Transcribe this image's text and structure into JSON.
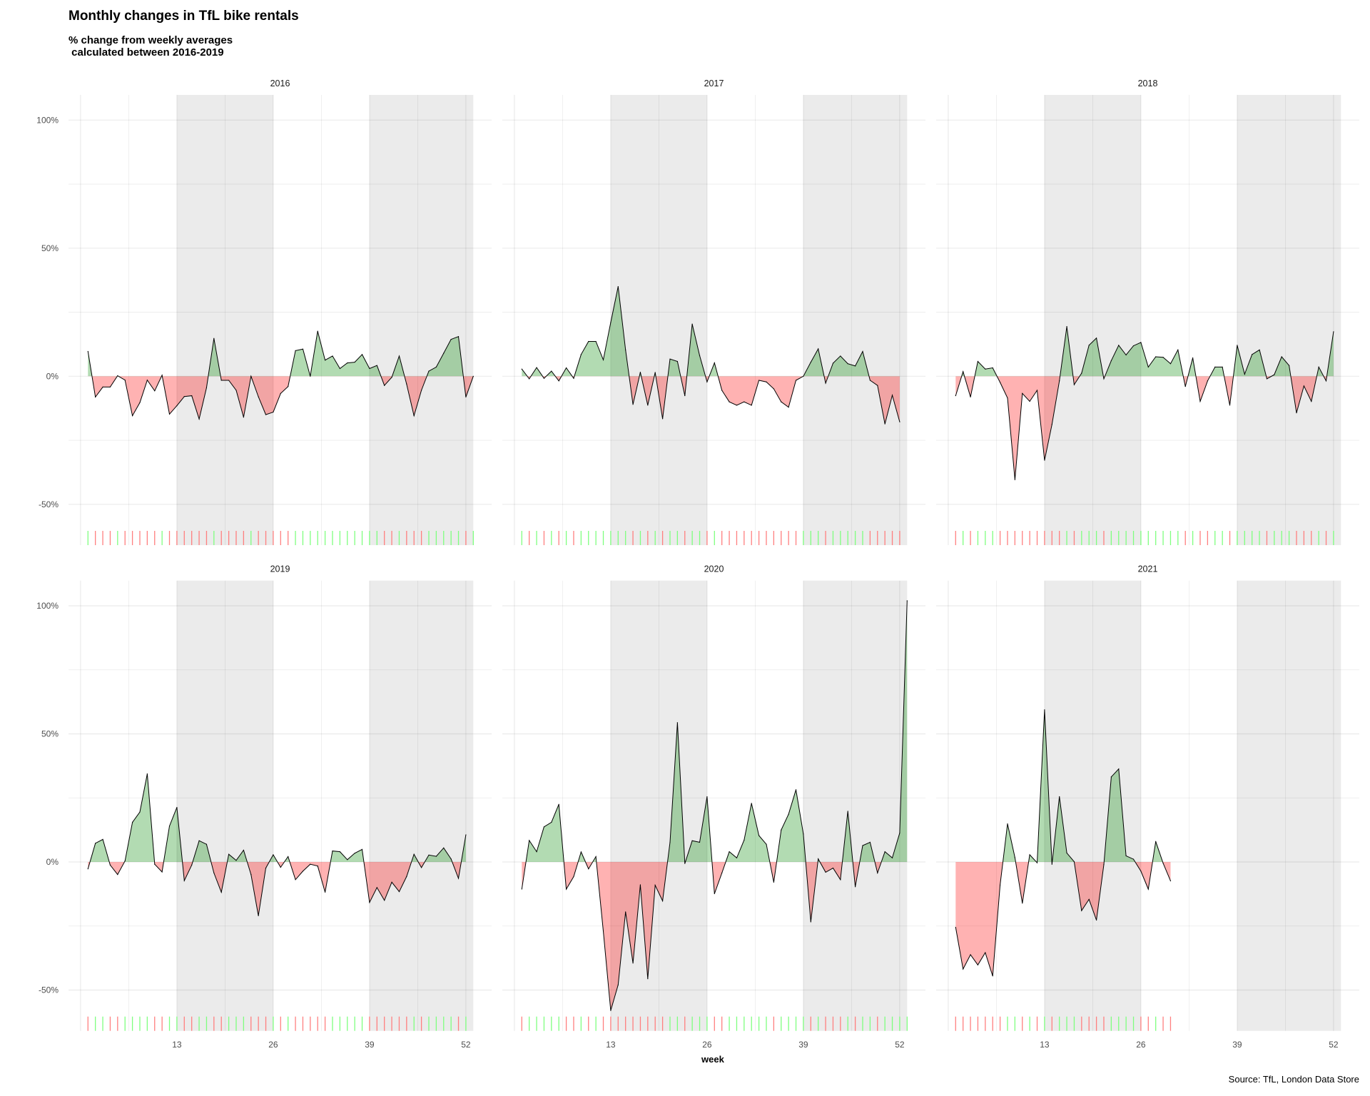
{
  "title": "Monthly changes in TfL bike rentals",
  "subtitle": "% change from weekly averages\n calculated between 2016-2019",
  "source": "Source: TfL, London Data Store",
  "colors": {
    "positive": "#008700",
    "negative": "#ff0000",
    "shade": "#ebebeb",
    "rug_positive": "#7fff7f",
    "rug_negative": "#ff7f7f"
  },
  "chart_data": {
    "type": "area",
    "facet_by": "year",
    "xlabel": "week",
    "ylabel": "",
    "x_ticks": [
      13,
      26,
      39,
      52
    ],
    "x_tick_labels": [
      "13",
      "26",
      "39",
      "52"
    ],
    "y_ticks": [
      100,
      50,
      0,
      -50
    ],
    "y_tick_labels": [
      "100%",
      "50%",
      "0%",
      "-50%"
    ],
    "xlim": [
      -1.6,
      55.5
    ],
    "ylim": [
      -66,
      110
    ],
    "grid": true,
    "shaded_week_ranges": [
      [
        13,
        26
      ],
      [
        39,
        53
      ]
    ],
    "panels": [
      {
        "year": "2016",
        "values": [
          9.7,
          -8.1,
          -4.2,
          -4.2,
          0.2,
          -1.5,
          -15.4,
          -10.3,
          -1.5,
          -5.7,
          0.4,
          -14.8,
          -11.5,
          -7.9,
          -7.6,
          -16.7,
          -4.5,
          14.8,
          -1.6,
          -1.6,
          -5.5,
          -16,
          0,
          -8,
          -15,
          -14,
          -6.7,
          -4,
          10,
          10.6,
          0,
          17.6,
          6.3,
          7.9,
          3,
          5.2,
          5.5,
          8.5,
          3,
          4.2,
          -3.6,
          -0.4,
          7.9,
          -3,
          -15.4,
          -5.5,
          2,
          3.6,
          9,
          14.4,
          15.5,
          -8.1,
          0
        ]
      },
      {
        "year": "2017",
        "values": [
          2.8,
          -1,
          3.4,
          -0.8,
          2,
          -1.8,
          3.3,
          -0.8,
          8.5,
          13.6,
          13.6,
          6.4,
          21,
          35,
          10.3,
          -11,
          1.6,
          -11.3,
          1.5,
          -16.6,
          6.7,
          5.8,
          -7.6,
          20.4,
          8.1,
          -2.2,
          5.2,
          -5.5,
          -10,
          -11.3,
          -10,
          -11.3,
          -1.6,
          -2.2,
          -4.9,
          -10,
          -12.1,
          -1.6,
          0,
          5.5,
          10.7,
          -2.7,
          5.1,
          7.9,
          4.9,
          4,
          9.7,
          -1.6,
          -3.6,
          -18.6,
          -7.4,
          -17.8
        ]
      },
      {
        "year": "2018",
        "values": [
          -7.6,
          1.8,
          -8.1,
          5.8,
          2.8,
          3.3,
          -2.4,
          -8.5,
          -40.4,
          -6.7,
          -9.8,
          -5.5,
          -32.8,
          -18.8,
          -1.8,
          19.4,
          -3.3,
          1.2,
          12.1,
          14.9,
          -1,
          6.1,
          12.1,
          8.3,
          11.9,
          13.2,
          3.6,
          7.6,
          7.4,
          4.9,
          10.3,
          -4,
          7.2,
          -9.8,
          -1.8,
          3.6,
          3.6,
          -11.3,
          12.1,
          0.8,
          8.5,
          10.3,
          -1,
          0.6,
          7.6,
          4.2,
          -14.3,
          -3.8,
          -9.8,
          3.6,
          -1.8,
          17.4
        ]
      },
      {
        "year": "2019",
        "values": [
          -2.7,
          7.3,
          8.8,
          -1.2,
          -4.9,
          0.4,
          15.5,
          19.5,
          34.4,
          -0.9,
          -3.9,
          14,
          21.3,
          -7.3,
          -1.2,
          8.3,
          6.9,
          -4.3,
          -11.8,
          3,
          0.6,
          4.6,
          -4.9,
          -21,
          -2.4,
          2.8,
          -2.1,
          2.1,
          -6.9,
          -3.6,
          -0.9,
          -1.6,
          -11.8,
          4.3,
          4,
          0.9,
          3.4,
          4.9,
          -15.8,
          -10,
          -15,
          -7.9,
          -11.6,
          -5.7,
          3,
          -2.2,
          2.7,
          2.2,
          5.5,
          1.2,
          -6.4,
          10.6
        ]
      },
      {
        "year": "2020",
        "values": [
          -10.6,
          8.4,
          4,
          13.7,
          15.5,
          22.5,
          -10.6,
          -5.7,
          3.9,
          -2.7,
          2.1,
          -27,
          -58,
          -48,
          -19.5,
          -39.5,
          -8.9,
          -45.6,
          -9.1,
          -15.2,
          7.7,
          54.4,
          -0.6,
          8.3,
          7.7,
          25.5,
          -12.4,
          -4.3,
          4,
          1.6,
          8.5,
          22.9,
          10.3,
          6.9,
          -7.9,
          12.5,
          18.6,
          28.2,
          10.9,
          -23.4,
          1.2,
          -4,
          -2.4,
          -6.9,
          19.8,
          -9.7,
          6.4,
          7.7,
          -4.3,
          4,
          1.6,
          11.3,
          102
        ]
      },
      {
        "year": "2021",
        "values": [
          -25.5,
          -41.8,
          -36.2,
          -40.2,
          -35.4,
          -44.5,
          -9,
          14.9,
          1.7,
          -16.1,
          2.8,
          -0.3,
          59.4,
          -0.9,
          25.5,
          3.5,
          0.1,
          -19,
          -14.6,
          -22.7,
          -1,
          33.2,
          36.3,
          2.4,
          1.1,
          -3.6,
          -10.6,
          8,
          -0.5,
          -7.4
        ]
      }
    ]
  }
}
